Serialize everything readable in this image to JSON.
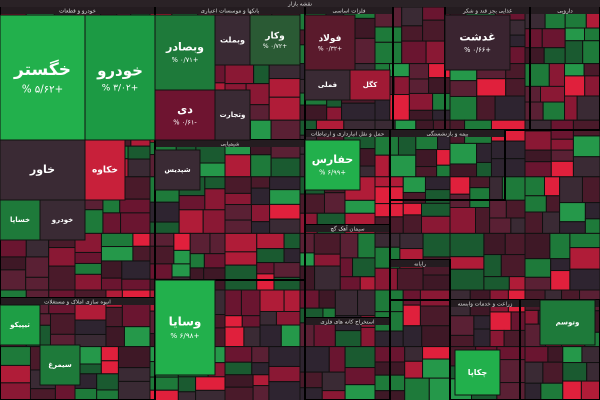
{
  "header": {
    "title": "نقشه بازار"
  },
  "sectors": [
    {
      "label": "خودرو و قطعات"
    },
    {
      "label": "بانکها و موسسات اعتباری"
    },
    {
      "label": "فلزات اساسی"
    },
    {
      "label": "غذایی بجز قند و شکر"
    },
    {
      "label": "دارویی"
    },
    {
      "label": "شیمیایی"
    },
    {
      "label": "حمل و نقل انبارداری و ارتباطات"
    },
    {
      "label": "بیمه و بازنشستگی"
    },
    {
      "label": "سیمان آهک گچ"
    },
    {
      "label": "انبوه سازی املاک و مستغلات"
    },
    {
      "label": "استخراج کانه های فلزی"
    },
    {
      "label": "زراعت و خدمات وابسته"
    },
    {
      "label": "محصولات کاغذی"
    },
    {
      "label": "رایانه"
    }
  ],
  "tiles": [
    {
      "name": "خگستر",
      "change": "+۵/۶۲ %"
    },
    {
      "name": "خودرو",
      "change": "+۳/۰۲ %"
    },
    {
      "name": "خاور"
    },
    {
      "name": "خکاوه"
    },
    {
      "name": "وبصادر",
      "change": "+۰/۷۱ %"
    },
    {
      "name": "دی",
      "change": "-۰/۶۱ %"
    },
    {
      "name": "وبملت"
    },
    {
      "name": "وکار",
      "change": "+۰/۷۲ %"
    },
    {
      "name": "فولاد",
      "change": "+۰/۳۲ %"
    },
    {
      "name": "فملی"
    },
    {
      "name": "غدشت",
      "change": "+۰/۶۶ %"
    },
    {
      "name": "حفارس",
      "change": "+۶/۹۹ %"
    },
    {
      "name": "وسایا",
      "change": "+۶/۹۸ %"
    },
    {
      "name": "شپدیس"
    },
    {
      "name": "تیپیکو"
    },
    {
      "name": "خساپا"
    },
    {
      "name": "وتجارت"
    },
    {
      "name": "کگل"
    },
    {
      "name": "خودرو"
    },
    {
      "name": "سیمرغ"
    },
    {
      "name": "چکاپا"
    },
    {
      "name": "وتوسم"
    }
  ]
}
